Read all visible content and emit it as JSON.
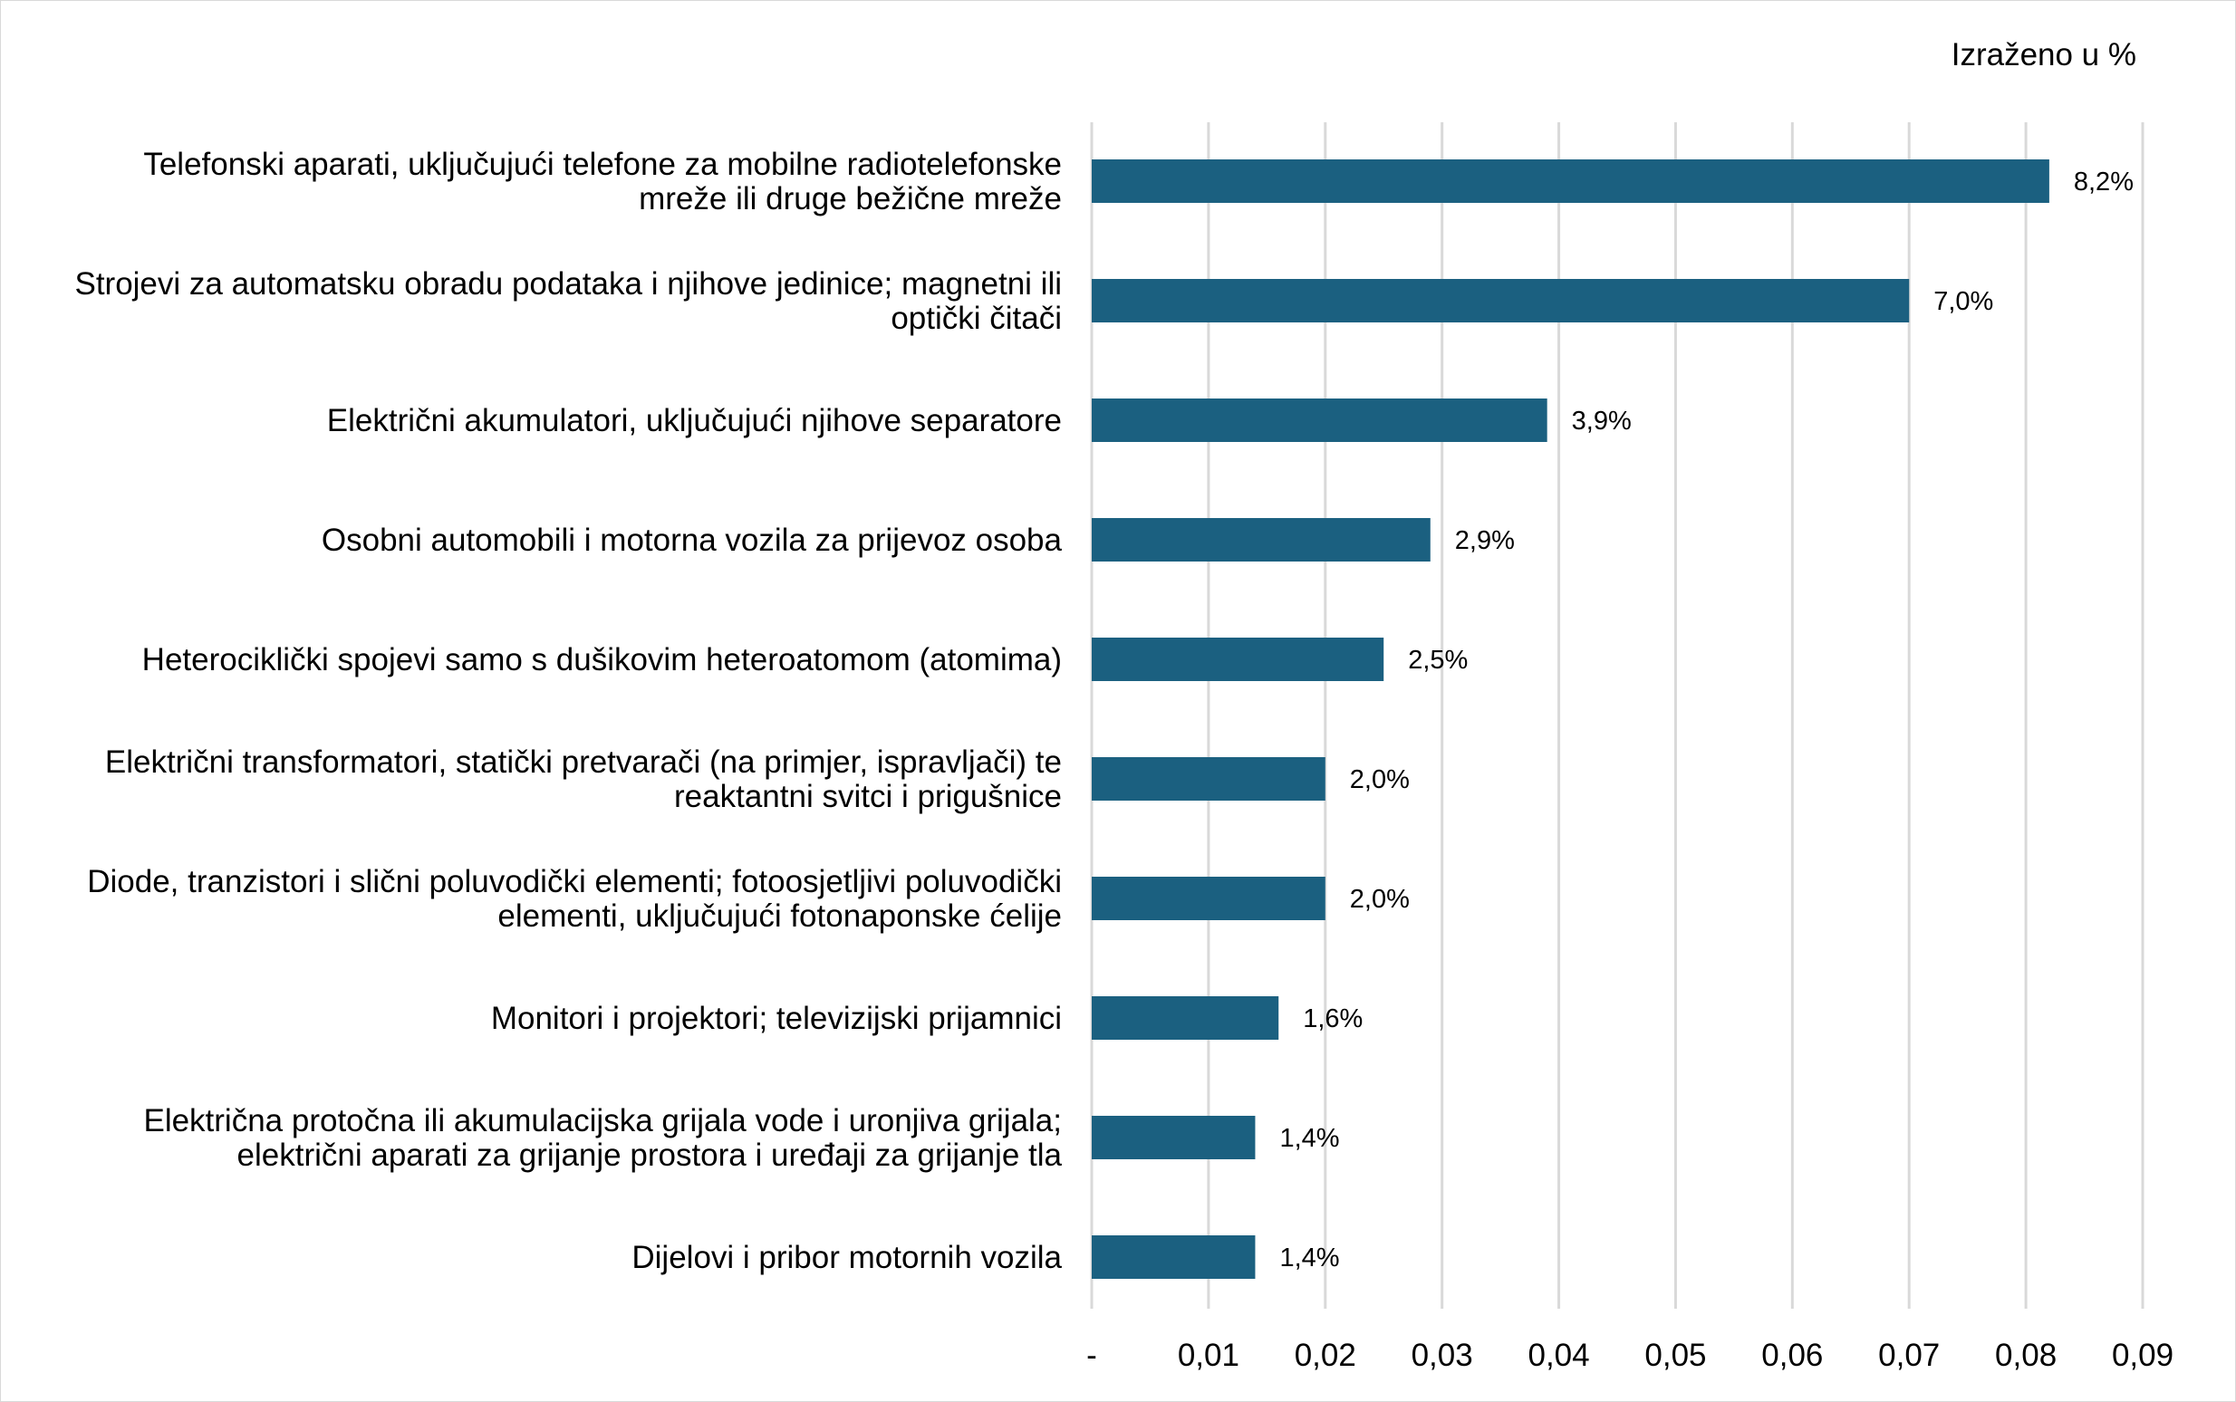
{
  "chart_data": {
    "type": "bar",
    "orientation": "horizontal",
    "unit_note": "Izraženo u %",
    "categories": [
      [
        "Telefonski aparati, uključujući telefone za mobilne radiotelefonske",
        "mreže ili druge bežične mreže"
      ],
      [
        "Strojevi za automatsku obradu podataka i njihove jedinice; magnetni ili",
        "optički čitači"
      ],
      [
        "Električni akumulatori, uključujući njihove separatore"
      ],
      [
        "Osobni automobili i motorna vozila za prijevoz osoba"
      ],
      [
        "Heterociklički spojevi samo s dušikovim heteroatomom (atomima)"
      ],
      [
        "Električni transformatori, statički pretvarači (na primjer, ispravljači) te",
        "reaktantni svitci i prigušnice"
      ],
      [
        "Diode, tranzistori i slični poluvodički elementi; fotoosjetljivi poluvodički",
        "elementi, uključujući fotonaponske ćelije"
      ],
      [
        "Monitori i projektori; televizijski prijamnici"
      ],
      [
        "Električna protočna ili akumulacijska grijala vode i uronjiva grijala;",
        "električni aparati za grijanje prostora i uređaji za grijanje tla"
      ],
      [
        "Dijelovi i pribor motornih vozila"
      ]
    ],
    "values": [
      0.082,
      0.07,
      0.039,
      0.029,
      0.025,
      0.02,
      0.02,
      0.016,
      0.014,
      0.014
    ],
    "data_labels": [
      "8,2%",
      "7,0%",
      "3,9%",
      "2,9%",
      "2,5%",
      "2,0%",
      "2,0%",
      "1,6%",
      "1,4%",
      "1,4%"
    ],
    "xlim": [
      0,
      0.09
    ],
    "x_ticks": [
      0,
      0.01,
      0.02,
      0.03,
      0.04,
      0.05,
      0.06,
      0.07,
      0.08,
      0.09
    ],
    "x_tick_labels": [
      "-",
      "0,01",
      "0,02",
      "0,03",
      "0,04",
      "0,05",
      "0,06",
      "0,07",
      "0,08",
      "0,09"
    ],
    "grid": "vertical",
    "legend": "none",
    "bar_color": "#1b6080",
    "grid_color": "#d9d9d9"
  }
}
